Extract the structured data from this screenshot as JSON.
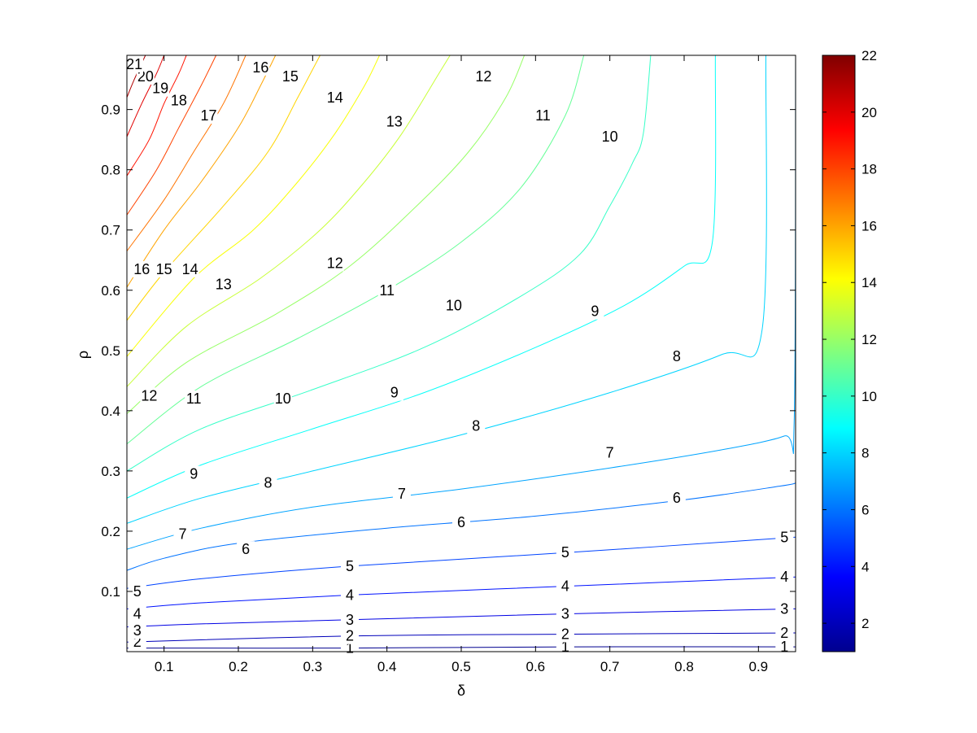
{
  "chart_data": {
    "type": "contour",
    "xlabel": "δ",
    "ylabel": "ρ",
    "xlim": [
      0.05,
      0.95
    ],
    "ylim": [
      0,
      0.99
    ],
    "xticks": [
      "0.1",
      "0.2",
      "0.3",
      "0.4",
      "0.5",
      "0.6",
      "0.7",
      "0.8",
      "0.9"
    ],
    "yticks": [
      "0.1",
      "0.2",
      "0.3",
      "0.4",
      "0.5",
      "0.6",
      "0.7",
      "0.8",
      "0.9"
    ],
    "colorbar": {
      "colormap": "jet",
      "range": [
        1,
        22
      ],
      "ticks": [
        "2",
        "4",
        "6",
        "8",
        "10",
        "12",
        "14",
        "16",
        "18",
        "20",
        "22"
      ]
    },
    "grid": false,
    "contours": [
      {
        "level": 1,
        "label": "1",
        "points": [
          [
            0.05,
            0.006
          ],
          [
            0.35,
            0.006
          ],
          [
            0.65,
            0.008
          ],
          [
            0.95,
            0.008
          ]
        ],
        "labels": [
          {
            "text": "1",
            "at": [
              0.35,
              0.006
            ]
          },
          {
            "text": "1",
            "at": [
              0.64,
              0.008
            ]
          },
          {
            "text": "1",
            "at": [
              0.935,
              0.008
            ]
          }
        ]
      },
      {
        "level": 2,
        "label": "2",
        "points": [
          [
            0.05,
            0.016
          ],
          [
            0.35,
            0.026
          ],
          [
            0.65,
            0.029
          ],
          [
            0.95,
            0.031
          ]
        ],
        "labels": [
          {
            "text": "2",
            "at": [
              0.064,
              0.016
            ]
          },
          {
            "text": "2",
            "at": [
              0.35,
              0.026
            ]
          },
          {
            "text": "2",
            "at": [
              0.64,
              0.029
            ]
          },
          {
            "text": "2",
            "at": [
              0.935,
              0.031
            ]
          }
        ]
      },
      {
        "level": 3,
        "label": "3",
        "points": [
          [
            0.05,
            0.041
          ],
          [
            0.15,
            0.046
          ],
          [
            0.35,
            0.053
          ],
          [
            0.65,
            0.063
          ],
          [
            0.95,
            0.071
          ]
        ],
        "labels": [
          {
            "text": "3",
            "at": [
              0.064,
              0.035
            ]
          },
          {
            "text": "3",
            "at": [
              0.35,
              0.053
            ]
          },
          {
            "text": "3",
            "at": [
              0.64,
              0.063
            ]
          },
          {
            "text": "3",
            "at": [
              0.935,
              0.071
            ]
          }
        ]
      },
      {
        "level": 4,
        "label": "4",
        "points": [
          [
            0.05,
            0.071
          ],
          [
            0.15,
            0.081
          ],
          [
            0.35,
            0.094
          ],
          [
            0.65,
            0.109
          ],
          [
            0.95,
            0.124
          ]
        ],
        "labels": [
          {
            "text": "4",
            "at": [
              0.064,
              0.063
            ]
          },
          {
            "text": "4",
            "at": [
              0.35,
              0.094
            ]
          },
          {
            "text": "4",
            "at": [
              0.64,
              0.109
            ]
          },
          {
            "text": "4",
            "at": [
              0.935,
              0.124
            ]
          }
        ]
      },
      {
        "level": 5,
        "label": "5",
        "points": [
          [
            0.05,
            0.105
          ],
          [
            0.15,
            0.121
          ],
          [
            0.35,
            0.142
          ],
          [
            0.65,
            0.165
          ],
          [
            0.95,
            0.19
          ]
        ],
        "labels": [
          {
            "text": "5",
            "at": [
              0.064,
              0.1
            ]
          },
          {
            "text": "5",
            "at": [
              0.35,
              0.142
            ]
          },
          {
            "text": "5",
            "at": [
              0.64,
              0.165
            ]
          },
          {
            "text": "5",
            "at": [
              0.935,
              0.19
            ]
          }
        ]
      },
      {
        "level": 6,
        "label": "6",
        "points": [
          [
            0.05,
            0.135
          ],
          [
            0.1,
            0.155
          ],
          [
            0.2,
            0.18
          ],
          [
            0.4,
            0.205
          ],
          [
            0.6,
            0.225
          ],
          [
            0.8,
            0.252
          ],
          [
            0.93,
            0.275
          ],
          [
            0.95,
            0.28
          ]
        ],
        "labels": [
          {
            "text": "6",
            "at": [
              0.21,
              0.17
            ]
          },
          {
            "text": "6",
            "at": [
              0.5,
              0.215
            ]
          },
          {
            "text": "6",
            "at": [
              0.79,
              0.255
            ]
          }
        ]
      },
      {
        "level": 7,
        "label": "7",
        "points": [
          [
            0.05,
            0.17
          ],
          [
            0.15,
            0.205
          ],
          [
            0.3,
            0.24
          ],
          [
            0.5,
            0.27
          ],
          [
            0.7,
            0.305
          ],
          [
            0.85,
            0.335
          ],
          [
            0.935,
            0.358
          ],
          [
            0.948,
            0.38
          ],
          [
            0.95,
            0.99
          ]
        ],
        "labels": [
          {
            "text": "7",
            "at": [
              0.125,
              0.195
            ]
          },
          {
            "text": "7",
            "at": [
              0.42,
              0.262
            ]
          },
          {
            "text": "7",
            "at": [
              0.7,
              0.33
            ]
          }
        ]
      },
      {
        "level": 8,
        "label": "8",
        "points": [
          [
            0.05,
            0.213
          ],
          [
            0.15,
            0.255
          ],
          [
            0.3,
            0.3
          ],
          [
            0.5,
            0.36
          ],
          [
            0.7,
            0.43
          ],
          [
            0.85,
            0.493
          ],
          [
            0.905,
            0.535
          ],
          [
            0.91,
            0.99
          ]
        ],
        "labels": [
          {
            "text": "8",
            "at": [
              0.24,
              0.28
            ]
          },
          {
            "text": "8",
            "at": [
              0.52,
              0.375
            ]
          },
          {
            "text": "8",
            "at": [
              0.79,
              0.49
            ]
          }
        ]
      },
      {
        "level": 9,
        "label": "9",
        "points": [
          [
            0.05,
            0.255
          ],
          [
            0.15,
            0.31
          ],
          [
            0.3,
            0.37
          ],
          [
            0.45,
            0.43
          ],
          [
            0.6,
            0.505
          ],
          [
            0.72,
            0.575
          ],
          [
            0.8,
            0.64
          ],
          [
            0.838,
            0.68
          ],
          [
            0.842,
            0.99
          ]
        ],
        "labels": [
          {
            "text": "9",
            "at": [
              0.14,
              0.295
            ]
          },
          {
            "text": "9",
            "at": [
              0.41,
              0.43
            ]
          },
          {
            "text": "9",
            "at": [
              0.68,
              0.565
            ]
          }
        ]
      },
      {
        "level": 10,
        "label": "10",
        "points": [
          [
            0.05,
            0.3
          ],
          [
            0.15,
            0.37
          ],
          [
            0.3,
            0.435
          ],
          [
            0.45,
            0.505
          ],
          [
            0.58,
            0.59
          ],
          [
            0.66,
            0.66
          ],
          [
            0.7,
            0.74
          ],
          [
            0.73,
            0.81
          ],
          [
            0.745,
            0.86
          ],
          [
            0.755,
            0.99
          ]
        ],
        "labels": [
          {
            "text": "10",
            "at": [
              0.26,
              0.42
            ]
          },
          {
            "text": "10",
            "at": [
              0.49,
              0.575
            ]
          },
          {
            "text": "10",
            "at": [
              0.7,
              0.855
            ]
          }
        ]
      },
      {
        "level": 11,
        "label": "11",
        "points": [
          [
            0.05,
            0.345
          ],
          [
            0.15,
            0.44
          ],
          [
            0.28,
            0.52
          ],
          [
            0.4,
            0.6
          ],
          [
            0.5,
            0.68
          ],
          [
            0.58,
            0.77
          ],
          [
            0.64,
            0.89
          ],
          [
            0.665,
            0.99
          ]
        ],
        "labels": [
          {
            "text": "11",
            "at": [
              0.14,
              0.42
            ]
          },
          {
            "text": "11",
            "at": [
              0.4,
              0.6
            ]
          },
          {
            "text": "11",
            "at": [
              0.61,
              0.89
            ]
          }
        ]
      },
      {
        "level": 12,
        "label": "12",
        "points": [
          [
            0.05,
            0.395
          ],
          [
            0.13,
            0.48
          ],
          [
            0.25,
            0.56
          ],
          [
            0.35,
            0.64
          ],
          [
            0.44,
            0.74
          ],
          [
            0.51,
            0.83
          ],
          [
            0.56,
            0.92
          ],
          [
            0.585,
            0.99
          ]
        ],
        "labels": [
          {
            "text": "12",
            "at": [
              0.08,
              0.425
            ]
          },
          {
            "text": "12",
            "at": [
              0.33,
              0.645
            ]
          },
          {
            "text": "12",
            "at": [
              0.53,
              0.955
            ]
          }
        ]
      },
      {
        "level": 13,
        "label": "13",
        "points": [
          [
            0.05,
            0.44
          ],
          [
            0.13,
            0.54
          ],
          [
            0.23,
            0.62
          ],
          [
            0.31,
            0.7
          ],
          [
            0.37,
            0.78
          ],
          [
            0.42,
            0.86
          ],
          [
            0.47,
            0.96
          ],
          [
            0.485,
            0.99
          ]
        ],
        "labels": [
          {
            "text": "13",
            "at": [
              0.18,
              0.61
            ]
          },
          {
            "text": "13",
            "at": [
              0.41,
              0.88
            ]
          }
        ]
      },
      {
        "level": 14,
        "label": "14",
        "points": [
          [
            0.05,
            0.49
          ],
          [
            0.14,
            0.62
          ],
          [
            0.22,
            0.7
          ],
          [
            0.28,
            0.78
          ],
          [
            0.33,
            0.86
          ],
          [
            0.37,
            0.94
          ],
          [
            0.39,
            0.99
          ]
        ],
        "labels": [
          {
            "text": "14",
            "at": [
              0.135,
              0.635
            ]
          },
          {
            "text": "14",
            "at": [
              0.33,
              0.92
            ]
          }
        ]
      },
      {
        "level": 15,
        "label": "15",
        "points": [
          [
            0.05,
            0.55
          ],
          [
            0.1,
            0.63
          ],
          [
            0.18,
            0.74
          ],
          [
            0.24,
            0.83
          ],
          [
            0.28,
            0.92
          ],
          [
            0.31,
            0.99
          ]
        ],
        "labels": [
          {
            "text": "15",
            "at": [
              0.1,
              0.635
            ]
          },
          {
            "text": "15",
            "at": [
              0.27,
              0.955
            ]
          }
        ]
      },
      {
        "level": 16,
        "label": "16",
        "points": [
          [
            0.05,
            0.605
          ],
          [
            0.1,
            0.7
          ],
          [
            0.15,
            0.78
          ],
          [
            0.2,
            0.87
          ],
          [
            0.23,
            0.94
          ],
          [
            0.25,
            0.99
          ]
        ],
        "labels": [
          {
            "text": "16",
            "at": [
              0.07,
              0.635
            ]
          },
          {
            "text": "16",
            "at": [
              0.23,
              0.97
            ]
          }
        ]
      },
      {
        "level": 17,
        "label": "17",
        "points": [
          [
            0.05,
            0.665
          ],
          [
            0.1,
            0.75
          ],
          [
            0.14,
            0.83
          ],
          [
            0.18,
            0.91
          ],
          [
            0.21,
            0.99
          ]
        ],
        "labels": [
          {
            "text": "17",
            "at": [
              0.16,
              0.89
            ]
          }
        ]
      },
      {
        "level": 18,
        "label": "18",
        "points": [
          [
            0.05,
            0.725
          ],
          [
            0.09,
            0.8
          ],
          [
            0.12,
            0.87
          ],
          [
            0.15,
            0.94
          ],
          [
            0.17,
            0.99
          ]
        ],
        "labels": [
          {
            "text": "18",
            "at": [
              0.12,
              0.915
            ]
          }
        ]
      },
      {
        "level": 19,
        "label": "19",
        "points": [
          [
            0.05,
            0.79
          ],
          [
            0.08,
            0.85
          ],
          [
            0.1,
            0.91
          ],
          [
            0.12,
            0.96
          ],
          [
            0.13,
            0.99
          ]
        ],
        "labels": [
          {
            "text": "19",
            "at": [
              0.095,
              0.935
            ]
          }
        ]
      },
      {
        "level": 20,
        "label": "20",
        "points": [
          [
            0.05,
            0.855
          ],
          [
            0.07,
            0.91
          ],
          [
            0.09,
            0.96
          ],
          [
            0.1,
            0.99
          ]
        ],
        "labels": [
          {
            "text": "20",
            "at": [
              0.075,
              0.955
            ]
          }
        ]
      },
      {
        "level": 21,
        "label": "21",
        "points": [
          [
            0.05,
            0.92
          ],
          [
            0.06,
            0.95
          ],
          [
            0.075,
            0.99
          ]
        ],
        "labels": [
          {
            "text": "21",
            "at": [
              0.06,
              0.975
            ]
          }
        ]
      }
    ]
  }
}
